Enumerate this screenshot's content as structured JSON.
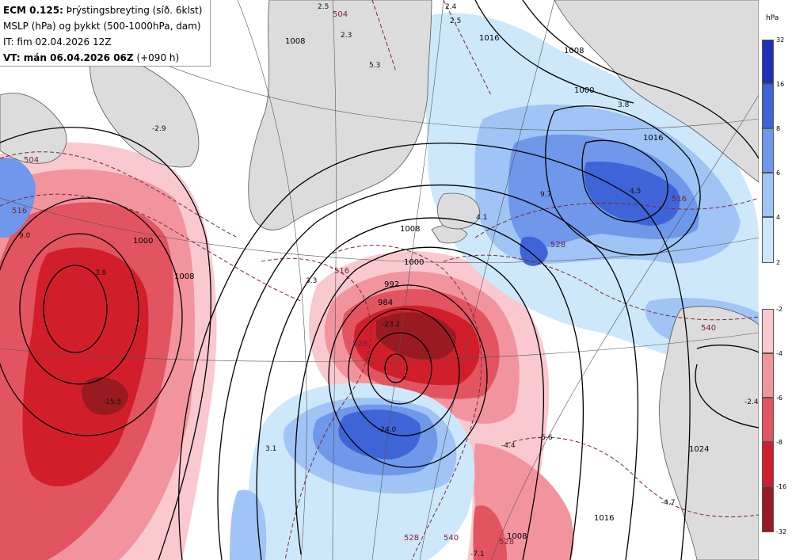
{
  "header": {
    "line1_model": "ECM 0.125:",
    "line1_rest": "Þrýstingsbreyting (síð. 6klst)",
    "line2": "MSLP (hPa) og þykkt (500-1000hPa, dam)",
    "line3": "IT: fim 02.04.2026 12Z",
    "line4_vt": "VT: mán 06.04.2026 06Z",
    "line4_rest": "(+090 h)"
  },
  "colorbar": {
    "unit": "hPa",
    "positive": [
      {
        "value": "32",
        "color": "#1e2fb8"
      },
      {
        "value": "16",
        "color": "#3f64d8"
      },
      {
        "value": "8",
        "color": "#6f97ea"
      },
      {
        "value": "6",
        "color": "#9fc4f5"
      },
      {
        "value": "4",
        "color": "#cde8fb"
      },
      {
        "value": "2",
        "color": ""
      }
    ],
    "negative": [
      {
        "value": "-2",
        "color": "#f9c9cf"
      },
      {
        "value": "-4",
        "color": "#f2949e"
      },
      {
        "value": "-6",
        "color": "#e35461"
      },
      {
        "value": "-8",
        "color": "#d21e2b"
      },
      {
        "value": "-16",
        "color": "#9a1a22"
      },
      {
        "value": "-32",
        "color": ""
      }
    ]
  },
  "colors": {
    "land": "#dcdcdc",
    "coast": "#555555",
    "isobar": "#000000",
    "thickness": "#7a2638",
    "graticule": "#555555"
  },
  "isobar_labels": [
    "1008",
    "1000",
    "992",
    "984",
    "1008",
    "1016",
    "1008",
    "1016",
    "1008",
    "1024",
    "1016",
    "1008",
    "1000",
    "1000"
  ],
  "thickness_labels": [
    "504",
    "504",
    "516",
    "516",
    "528",
    "528",
    "540",
    "540",
    "528",
    "528",
    "516"
  ],
  "change_labels": [
    "2.5",
    "2.4",
    "2.5",
    "2.3",
    "5.3",
    "-2.9",
    "9.0",
    "3.8",
    "9.7",
    "4.1",
    "3.3",
    "4.5",
    "-23.2",
    "-24.0",
    "3.1",
    "-4.4",
    "-5.6",
    "-2.4",
    "-4.7",
    "-7.1",
    "-15.5",
    "3.8"
  ]
}
